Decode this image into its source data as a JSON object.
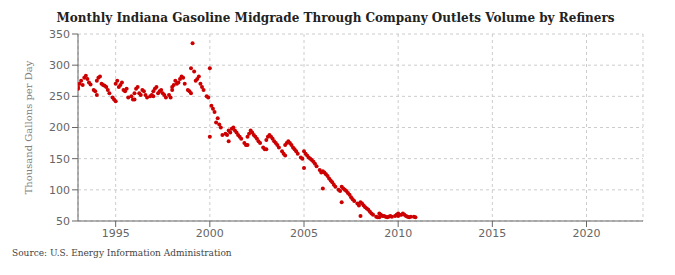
{
  "chart_data": {
    "type": "scatter",
    "title": "Monthly Indiana Gasoline Midgrade Through Company Outlets Volume by Refiners",
    "ylabel": "Thousand Gallons per Day",
    "source": "Source: U.S. Energy Information Administration",
    "color": "#cc0000",
    "grid": true,
    "xlim": [
      1993.0,
      2023.0
    ],
    "ylim": [
      50,
      350
    ],
    "xticks": [
      1995,
      2000,
      2005,
      2010,
      2015,
      2020
    ],
    "yticks": [
      50,
      100,
      150,
      200,
      250,
      300,
      350
    ],
    "x": [
      1993,
      1993.0833333333333,
      1993.1666666666667,
      1993.25,
      1993.3333333333333,
      1993.4166666666667,
      1993.5,
      1993.5833333333333,
      1993.6666666666667,
      1993,
      1993.8333333333333,
      1993.9166666666667,
      1994,
      1994.0833333333333,
      1994.1666666666667,
      1994.25,
      1994.3333333333333,
      1994.4166666666667,
      1994.5,
      1994.5833333333333,
      1994.6666666666667,
      1994,
      1994.8333333333333,
      1994.9166666666667,
      1995,
      1995.0833333333333,
      1995.1666666666667,
      1995.25,
      1995.3333333333333,
      1995.4166666666667,
      1995.5,
      1995.5833333333333,
      1995.6666666666667,
      1995,
      1995.8333333333333,
      1995.9166666666667,
      1996,
      1996.0833333333333,
      1996.1666666666667,
      1996.25,
      1996.3333333333333,
      1996.4166666666667,
      1996.5,
      1996.5833333333333,
      1996.6666666666667,
      1996,
      1996.8333333333333,
      1996.9166666666667,
      1997,
      1997.0833333333333,
      1997.1666666666667,
      1997.25,
      1997.3333333333333,
      1997.4166666666667,
      1997.5,
      1997.5833333333333,
      1997.6666666666667,
      1997,
      1997.8333333333333,
      1997.9166666666667,
      1998,
      1998.0833333333333,
      1998.1666666666667,
      1998.25,
      1998.3333333333333,
      1998.4166666666667,
      1998.5,
      1998.5833333333333,
      1998.6666666666667,
      1998,
      1998.8333333333333,
      1998.9166666666667,
      1999,
      1999.0833333333333,
      1999.1666666666667,
      1999.25,
      1999.3333333333333,
      1999.4166666666667,
      1999.5,
      1999.5833333333333,
      1999.6666666666667,
      1999,
      1999.8333333333333,
      1999.9166666666667,
      2000,
      2000.0833333333333,
      2000.1666666666667,
      2000.25,
      2000.3333333333333,
      2000.4166666666667,
      2000.5,
      2000.5833333333333,
      2000.6666666666667,
      2000,
      2000.8333333333333,
      2000.9166666666667,
      2001,
      2001.0833333333333,
      2001.1666666666667,
      2001.25,
      2001.3333333333333,
      2001.4166666666667,
      2001.5,
      2001.5833333333333,
      2001.6666666666667,
      2001,
      2001.8333333333333,
      2001.9166666666667,
      2002,
      2002.0833333333333,
      2002.1666666666667,
      2002.25,
      2002.3333333333333,
      2002.4166666666667,
      2002.5,
      2002.5833333333333,
      2002.6666666666667,
      2002,
      2002.8333333333333,
      2002.9166666666667,
      2003,
      2003.0833333333333,
      2003.1666666666667,
      2003.25,
      2003.3333333333333,
      2003.4166666666667,
      2003.5,
      2003.5833333333333,
      2003.6666666666667,
      2003,
      2003.8333333333333,
      2003.9166666666667,
      2004,
      2004.0833333333333,
      2004.1666666666667,
      2004.25,
      2004.3333333333333,
      2004.4166666666667,
      2004.5,
      2004.5833333333333,
      2004.6666666666667,
      2004,
      2004.8333333333333,
      2004.9166666666667,
      2005,
      2005.0833333333333,
      2005.1666666666667,
      2005.25,
      2005.3333333333333,
      2005.4166666666667,
      2005.5,
      2005.5833333333333,
      2005.6666666666667,
      2005,
      2005.8333333333333,
      2005.9166666666667,
      2006,
      2006.0833333333333,
      2006.1666666666667,
      2006.25,
      2006.3333333333333,
      2006.4166666666667,
      2006.5,
      2006.5833333333333,
      2006.6666666666667,
      2006,
      2006.8333333333333,
      2006.9166666666667,
      2007,
      2007.0833333333333,
      2007.1666666666667,
      2007.25,
      2007.3333333333333,
      2007.4166666666667,
      2007.5,
      2007.5833333333333,
      2007.6666666666667,
      2007,
      2007.8333333333333,
      2007.9166666666667,
      2008,
      2008.0833333333333,
      2008.1666666666667,
      2008.25,
      2008.3333333333333,
      2008.4166666666667,
      2008.5,
      2008.5833333333333,
      2008.6666666666667,
      2008,
      2008.8333333333333,
      2008.9166666666667,
      2009,
      2009.0833333333333,
      2009.1666666666667,
      2009.25,
      2009.3333333333333,
      2009.4166666666667,
      2009.5,
      2009.5833333333333,
      2009.6666666666667,
      2009,
      2009.8333333333333,
      2009.9166666666667,
      2010,
      2010.0833333333333,
      2010.1666666666667,
      2010.25,
      2010.3333333333333,
      2010.4166666666667,
      2010.5,
      2010.5833333333333,
      2010.6666666666667,
      2010,
      2010.8333333333333,
      2010.9166666666667
    ],
    "values": [
      262,
      270,
      275,
      268,
      280,
      283,
      278,
      272,
      269,
      265,
      260,
      258,
      275,
      280,
      282,
      270,
      268,
      267,
      265,
      260,
      255,
      252,
      248,
      245,
      270,
      275,
      265,
      268,
      272,
      260,
      258,
      262,
      248,
      242,
      250,
      245,
      255,
      262,
      265,
      255,
      252,
      260,
      258,
      252,
      248,
      245,
      250,
      252,
      258,
      262,
      265,
      255,
      258,
      260,
      255,
      252,
      248,
      250,
      252,
      248,
      260,
      268,
      275,
      270,
      272,
      278,
      282,
      280,
      270,
      265,
      260,
      258,
      295,
      335,
      290,
      275,
      278,
      282,
      270,
      265,
      260,
      255,
      250,
      248,
      295,
      235,
      230,
      225,
      208,
      215,
      205,
      200,
      188,
      185,
      190,
      188,
      195,
      192,
      198,
      200,
      195,
      192,
      188,
      185,
      182,
      178,
      175,
      172,
      185,
      190,
      195,
      192,
      188,
      185,
      182,
      178,
      175,
      172,
      168,
      165,
      180,
      185,
      188,
      185,
      182,
      178,
      175,
      172,
      168,
      165,
      162,
      158,
      172,
      175,
      178,
      175,
      172,
      168,
      165,
      162,
      158,
      155,
      152,
      150,
      162,
      158,
      155,
      152,
      150,
      148,
      145,
      142,
      138,
      135,
      132,
      128,
      130,
      128,
      125,
      122,
      118,
      115,
      112,
      108,
      105,
      102,
      100,
      98,
      105,
      102,
      100,
      98,
      95,
      92,
      88,
      85,
      82,
      80,
      78,
      75,
      80,
      78,
      75,
      72,
      70,
      68,
      65,
      62,
      60,
      58,
      57,
      56,
      62,
      60,
      58,
      58,
      57,
      56,
      57,
      58,
      57,
      56,
      58,
      60,
      62,
      60,
      60,
      62,
      60,
      58,
      57,
      56,
      57,
      58,
      57,
      56
    ]
  }
}
